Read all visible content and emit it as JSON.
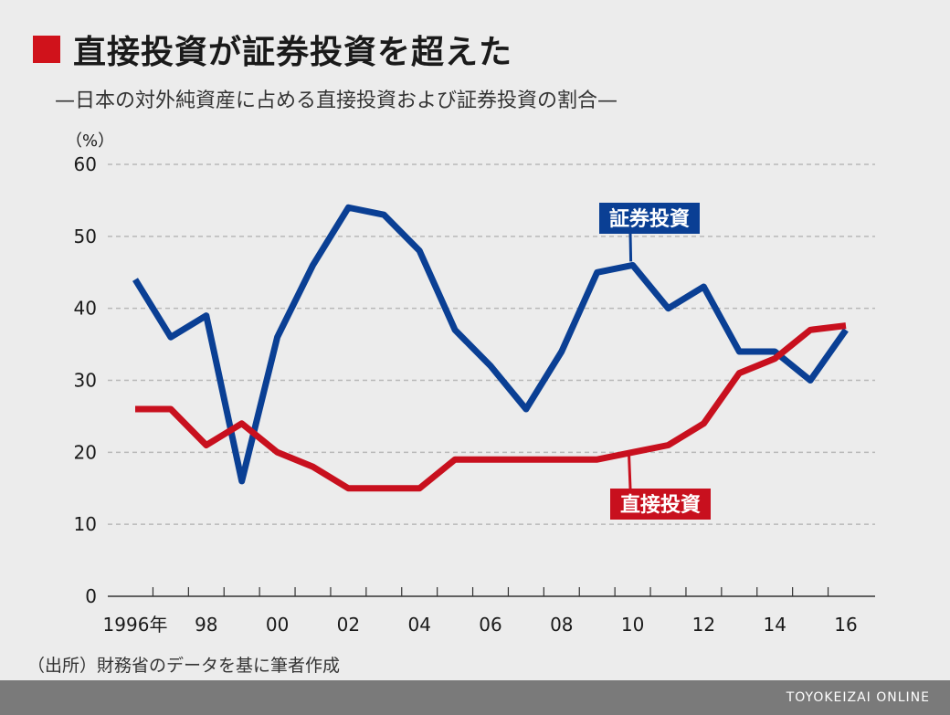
{
  "header": {
    "title": "直接投資が証券投資を超えた",
    "subtitle": "—日本の対外純資産に占める直接投資および証券投資の割合—"
  },
  "footer": {
    "source": "（出所）財務省のデータを基に筆者作成",
    "brand": "TOYOKEIZAI ONLINE"
  },
  "colors": {
    "securities": "#0a3f94",
    "direct": "#c8101e",
    "accent": "#d0121b",
    "grid": "#b8b8b8",
    "background": "#ececec"
  },
  "chart_data": {
    "type": "line",
    "unit_label": "（%）",
    "x": [
      1996,
      1997,
      1998,
      1999,
      2000,
      2001,
      2002,
      2003,
      2004,
      2005,
      2006,
      2007,
      2008,
      2009,
      2010,
      2011,
      2012,
      2013,
      2014,
      2015,
      2016
    ],
    "x_tick_labels": [
      {
        "year": 1996,
        "label": "1996年"
      },
      {
        "year": 1998,
        "label": "98"
      },
      {
        "year": 2000,
        "label": "00"
      },
      {
        "year": 2002,
        "label": "02"
      },
      {
        "year": 2004,
        "label": "04"
      },
      {
        "year": 2006,
        "label": "06"
      },
      {
        "year": 2008,
        "label": "08"
      },
      {
        "year": 2010,
        "label": "10"
      },
      {
        "year": 2012,
        "label": "12"
      },
      {
        "year": 2014,
        "label": "14"
      },
      {
        "year": 2016,
        "label": "16"
      }
    ],
    "y_ticks": [
      0,
      10,
      20,
      30,
      40,
      50,
      60
    ],
    "ylim": [
      0,
      60
    ],
    "xlim": [
      1996,
      2016
    ],
    "grid": "horizontal-dashed",
    "series": [
      {
        "name": "証券投資",
        "color": "#0a3f94",
        "values": [
          44,
          36,
          39,
          16,
          36,
          46,
          54,
          53,
          48,
          37,
          32,
          26,
          34,
          45,
          46,
          40,
          43,
          34,
          34,
          30,
          37
        ]
      },
      {
        "name": "直接投資",
        "color": "#c8101e",
        "values": [
          26,
          26,
          21,
          24,
          20,
          18,
          15,
          15,
          15,
          19,
          19,
          19,
          19,
          19,
          20,
          21,
          24,
          31,
          33,
          37,
          37.6
        ]
      }
    ]
  }
}
